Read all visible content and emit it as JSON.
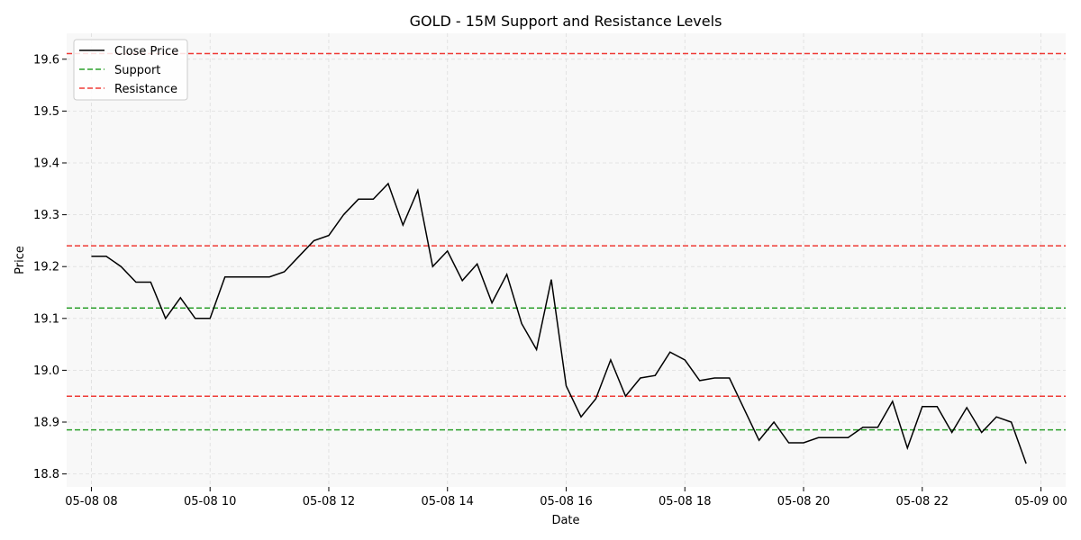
{
  "chart_data": {
    "type": "line",
    "title": "GOLD - 15M Support and Resistance Levels",
    "xlabel": "Date",
    "ylabel": "Price",
    "ylim": [
      18.775,
      19.65
    ],
    "xlim": [
      "05-08 07:35",
      "05-09 00:25"
    ],
    "grid": true,
    "legend_position": "top-left",
    "x_ticks": [
      {
        "t": "05-08 08:00",
        "label": "05-08 08"
      },
      {
        "t": "05-08 10:00",
        "label": "05-08 10"
      },
      {
        "t": "05-08 12:00",
        "label": "05-08 12"
      },
      {
        "t": "05-08 14:00",
        "label": "05-08 14"
      },
      {
        "t": "05-08 16:00",
        "label": "05-08 16"
      },
      {
        "t": "05-08 18:00",
        "label": "05-08 18"
      },
      {
        "t": "05-08 20:00",
        "label": "05-08 20"
      },
      {
        "t": "05-08 22:00",
        "label": "05-08 22"
      },
      {
        "t": "05-09 00:00",
        "label": "05-09 00"
      }
    ],
    "y_ticks": [
      {
        "v": 18.8,
        "label": "18.8"
      },
      {
        "v": 18.9,
        "label": "18.9"
      },
      {
        "v": 19.0,
        "label": "19.0"
      },
      {
        "v": 19.1,
        "label": "19.1"
      },
      {
        "v": 19.2,
        "label": "19.2"
      },
      {
        "v": 19.3,
        "label": "19.3"
      },
      {
        "v": 19.4,
        "label": "19.4"
      },
      {
        "v": 19.5,
        "label": "19.5"
      },
      {
        "v": 19.6,
        "label": "19.6"
      }
    ],
    "series": [
      {
        "name": "Close Price",
        "color": "#000000",
        "x": [
          "05-08 08:00",
          "05-08 08:15",
          "05-08 08:30",
          "05-08 08:45",
          "05-08 09:00",
          "05-08 09:15",
          "05-08 09:30",
          "05-08 09:45",
          "05-08 10:00",
          "05-08 10:15",
          "05-08 10:30",
          "05-08 10:45",
          "05-08 11:00",
          "05-08 11:15",
          "05-08 11:30",
          "05-08 11:45",
          "05-08 12:00",
          "05-08 12:15",
          "05-08 12:30",
          "05-08 12:45",
          "05-08 13:00",
          "05-08 13:15",
          "05-08 13:30",
          "05-08 13:45",
          "05-08 14:00",
          "05-08 14:15",
          "05-08 14:30",
          "05-08 14:45",
          "05-08 15:00",
          "05-08 15:15",
          "05-08 15:30",
          "05-08 15:45",
          "05-08 16:00",
          "05-08 16:15",
          "05-08 16:30",
          "05-08 16:45",
          "05-08 17:00",
          "05-08 17:15",
          "05-08 17:30",
          "05-08 17:45",
          "05-08 18:00",
          "05-08 18:15",
          "05-08 18:30",
          "05-08 18:45",
          "05-08 19:00",
          "05-08 19:15",
          "05-08 19:30",
          "05-08 19:45",
          "05-08 20:00",
          "05-08 20:15",
          "05-08 20:30",
          "05-08 20:45",
          "05-08 21:00",
          "05-08 21:15",
          "05-08 21:30",
          "05-08 21:45",
          "05-08 22:00",
          "05-08 22:15",
          "05-08 22:30",
          "05-08 22:45",
          "05-08 23:00",
          "05-08 23:15",
          "05-08 23:30",
          "05-08 23:45"
        ],
        "values": [
          19.22,
          19.22,
          19.2,
          19.17,
          19.17,
          19.1,
          19.14,
          19.1,
          19.1,
          19.18,
          19.18,
          19.18,
          19.18,
          19.19,
          19.22,
          19.25,
          19.26,
          19.3,
          19.33,
          19.33,
          19.36,
          19.28,
          19.347,
          19.2,
          19.23,
          19.173,
          19.205,
          19.13,
          19.185,
          19.09,
          19.04,
          19.175,
          18.97,
          18.91,
          18.945,
          19.02,
          18.95,
          18.985,
          18.99,
          19.035,
          19.02,
          18.98,
          18.985,
          18.985,
          18.925,
          18.865,
          18.9,
          18.86,
          18.86,
          18.87,
          18.87,
          18.87,
          18.89,
          18.89,
          18.94,
          18.85,
          18.93,
          18.93,
          18.88,
          18.928,
          18.88,
          18.91,
          18.9,
          18.82
        ]
      }
    ],
    "support_levels": [
      19.12,
      18.885
    ],
    "resistance_levels": [
      19.611,
      19.24,
      18.95
    ],
    "support_label": "Support",
    "resistance_label": "Resistance",
    "support_color": "#2ca02c",
    "resistance_color": "#ef3b36",
    "plot_bg": "#f8f8f8"
  }
}
